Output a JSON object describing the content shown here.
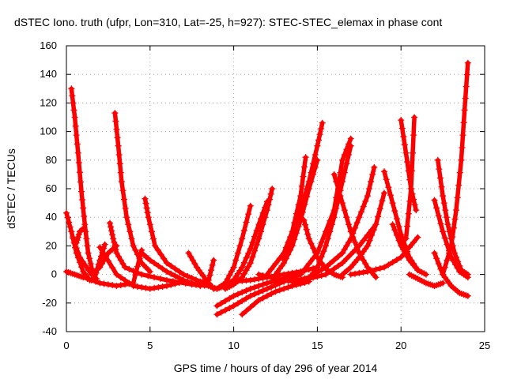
{
  "chart_data": {
    "type": "scatter",
    "title": "dSTEC Iono. truth (ufpr, Lon=310, Lat=-25, h=927): STEC-STEC_elemax in phase cont",
    "xlabel": "GPS time / hours of day 296 of year 2014",
    "ylabel": "dSTEC  / TECUs",
    "xlim": [
      0,
      25
    ],
    "ylim": [
      -40,
      160
    ],
    "xticks": [
      0,
      5,
      10,
      15,
      20,
      25
    ],
    "yticks": [
      -40,
      -20,
      0,
      20,
      40,
      60,
      80,
      100,
      120,
      140,
      160
    ],
    "grid": true,
    "marker": "plus",
    "color": "#ff0000",
    "series": [
      {
        "x": [
          0.0,
          0.3,
          0.6,
          1.0,
          1.4,
          1.8
        ],
        "y": [
          43,
          30,
          15,
          2,
          -4,
          -3
        ]
      },
      {
        "x": [
          0.3,
          0.5,
          0.7,
          0.9,
          1.1,
          1.3,
          1.6
        ],
        "y": [
          130,
          110,
          85,
          58,
          35,
          15,
          0
        ]
      },
      {
        "x": [
          0.0,
          0.5,
          1.0,
          2.0,
          3.0,
          4.0,
          4.5
        ],
        "y": [
          2,
          0,
          -2,
          -6,
          -8,
          -6,
          17
        ]
      },
      {
        "x": [
          0.4,
          0.8,
          1.5,
          2.0,
          2.5,
          3.0
        ],
        "y": [
          25,
          12,
          0,
          5,
          15,
          20
        ]
      },
      {
        "x": [
          0.6,
          0.8,
          1.0
        ],
        "y": [
          22,
          30,
          32
        ]
      },
      {
        "x": [
          1.7,
          2.0,
          2.3
        ],
        "y": [
          -2,
          10,
          21
        ]
      },
      {
        "x": [
          2.6,
          2.8,
          3.0,
          3.5,
          4.5,
          6.0,
          7.5,
          8.5
        ],
        "y": [
          36,
          25,
          15,
          5,
          0,
          -4,
          -7,
          -8
        ]
      },
      {
        "x": [
          2.9,
          3.1,
          3.3,
          3.6,
          4.0,
          4.5,
          5.0
        ],
        "y": [
          113,
          90,
          65,
          40,
          20,
          8,
          2
        ]
      },
      {
        "x": [
          2.0,
          3.0,
          4.0,
          5.0,
          6.0,
          7.0
        ],
        "y": [
          19,
          0,
          -8,
          -10,
          -8,
          -5
        ]
      },
      {
        "x": [
          4.7,
          4.9,
          5.3,
          6.0,
          7.0,
          8.0,
          8.5
        ],
        "y": [
          53,
          40,
          20,
          8,
          0,
          -5,
          -6
        ]
      },
      {
        "x": [
          4.5,
          5.0,
          6.0,
          7.0,
          8.0,
          8.5,
          8.8
        ],
        "y": [
          15,
          10,
          2,
          -4,
          -8,
          -4,
          10
        ]
      },
      {
        "x": [
          7.3,
          7.8,
          8.3,
          8.8
        ],
        "y": [
          15,
          5,
          -3,
          -10
        ]
      },
      {
        "x": [
          8.5,
          9.0,
          9.5,
          10.0,
          10.5,
          11.0
        ],
        "y": [
          -8,
          -10,
          -6,
          5,
          25,
          48
        ]
      },
      {
        "x": [
          9.0,
          9.5,
          10.0,
          10.5,
          11.0,
          11.5,
          12.0
        ],
        "y": [
          -10,
          -8,
          -4,
          5,
          18,
          35,
          51
        ]
      },
      {
        "x": [
          9.5,
          10.0,
          10.5,
          11.0,
          11.5,
          12.0,
          12.3
        ],
        "y": [
          -10,
          -7,
          -2,
          8,
          25,
          45,
          60
        ]
      },
      {
        "x": [
          9.0,
          10.0,
          11.0,
          12.0,
          13.0,
          13.5
        ],
        "y": [
          -28,
          -22,
          -15,
          -10,
          -5,
          0
        ]
      },
      {
        "x": [
          9.0,
          10.0,
          11.0,
          12.0,
          13.0,
          14.0
        ],
        "y": [
          -22,
          -15,
          -10,
          -6,
          -3,
          0
        ]
      },
      {
        "x": [
          10.5,
          11.5,
          12.5,
          13.5,
          14.5
        ],
        "y": [
          -28,
          -18,
          -12,
          -8,
          -5
        ]
      },
      {
        "x": [
          10.0,
          11.0,
          12.0,
          13.0,
          14.0,
          15.0
        ],
        "y": [
          -5,
          -4,
          -2,
          0,
          2,
          5
        ]
      },
      {
        "x": [
          11.5,
          12.5,
          13.5,
          14.5,
          15.5,
          16.5
        ],
        "y": [
          0,
          -3,
          -5,
          -2,
          5,
          15
        ]
      },
      {
        "x": [
          12.5,
          13.0,
          13.5,
          14.0,
          14.5,
          15.0
        ],
        "y": [
          0,
          8,
          20,
          38,
          60,
          80
        ]
      },
      {
        "x": [
          13.0,
          13.5,
          14.0,
          14.5,
          15.0,
          15.3
        ],
        "y": [
          10,
          25,
          45,
          65,
          90,
          106
        ]
      },
      {
        "x": [
          12.0,
          13.0,
          13.5,
          14.0,
          14.3
        ],
        "y": [
          0,
          15,
          30,
          55,
          82
        ]
      },
      {
        "x": [
          13.0,
          14.0,
          15.0,
          16.0,
          16.5,
          17.0
        ],
        "y": [
          -5,
          0,
          15,
          45,
          80,
          95
        ]
      },
      {
        "x": [
          14.5,
          15.0,
          15.5,
          16.0,
          16.5,
          17.0
        ],
        "y": [
          -3,
          5,
          20,
          40,
          65,
          90
        ]
      },
      {
        "x": [
          14.2,
          14.5,
          15.0,
          15.5,
          16.0,
          16.5
        ],
        "y": [
          38,
          25,
          12,
          4,
          0,
          -2
        ]
      },
      {
        "x": [
          16.0,
          16.5,
          17.0,
          17.5,
          18.0,
          18.5
        ],
        "y": [
          70,
          50,
          30,
          15,
          5,
          -2
        ]
      },
      {
        "x": [
          13.5,
          14.5,
          15.5,
          16.5,
          17.5,
          18.5
        ],
        "y": [
          -5,
          -3,
          0,
          8,
          20,
          35
        ]
      },
      {
        "x": [
          15.5,
          16.5,
          17.0,
          17.5,
          18.0,
          18.4
        ],
        "y": [
          5,
          15,
          25,
          40,
          55,
          75
        ]
      },
      {
        "x": [
          16.5,
          17.0,
          17.5,
          18.0,
          18.5,
          19.0
        ],
        "y": [
          0,
          5,
          12,
          20,
          35,
          57
        ]
      },
      {
        "x": [
          17.0,
          18.0,
          19.0,
          20.0,
          21.0
        ],
        "y": [
          0,
          2,
          5,
          12,
          26
        ]
      },
      {
        "x": [
          19.0,
          19.5,
          20.0,
          20.5,
          21.0
        ],
        "y": [
          72,
          50,
          28,
          12,
          3
        ]
      },
      {
        "x": [
          20.0,
          20.3,
          20.6,
          20.9
        ],
        "y": [
          108,
          85,
          60,
          45
        ]
      },
      {
        "x": [
          20.3,
          20.6,
          20.8
        ],
        "y": [
          25,
          60,
          110
        ]
      },
      {
        "x": [
          19.5,
          20.0,
          20.5,
          21.0,
          21.5
        ],
        "y": [
          35,
          20,
          10,
          3,
          0
        ]
      },
      {
        "x": [
          20.5,
          21.0,
          21.5,
          22.0,
          22.5
        ],
        "y": [
          0,
          -3,
          -6,
          -8,
          -6
        ]
      },
      {
        "x": [
          22.2,
          22.5,
          22.8,
          23.2,
          23.6,
          24.0
        ],
        "y": [
          80,
          55,
          35,
          15,
          3,
          0
        ]
      },
      {
        "x": [
          22.0,
          22.5,
          23.0,
          23.5,
          24.0
        ],
        "y": [
          52,
          30,
          12,
          2,
          -2
        ]
      },
      {
        "x": [
          22.0,
          22.5,
          23.0,
          23.5,
          24.0
        ],
        "y": [
          15,
          0,
          -8,
          -13,
          -15
        ]
      },
      {
        "x": [
          22.5,
          23.0,
          23.3,
          23.6,
          23.8,
          24.0
        ],
        "y": [
          0,
          20,
          45,
          80,
          115,
          148
        ]
      }
    ]
  }
}
